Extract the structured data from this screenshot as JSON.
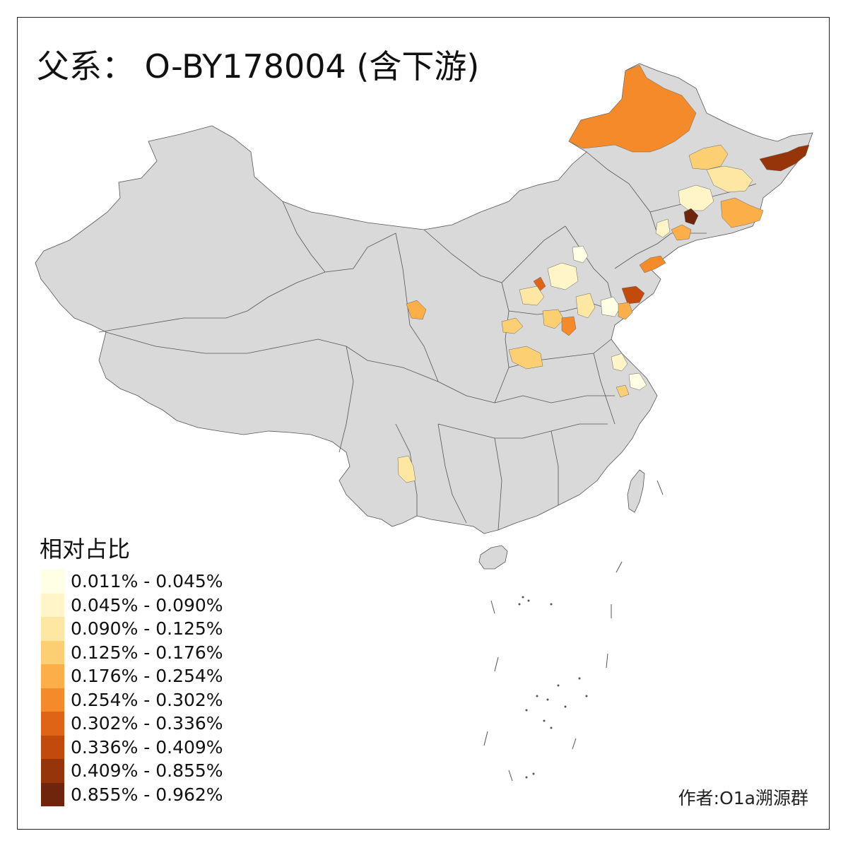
{
  "title": "父系： O-BY178004 (含下游)",
  "legend": {
    "title": "相对占比",
    "items": [
      {
        "label": "0.011% - 0.045%",
        "color": "#FFFFE6"
      },
      {
        "label": "0.045% - 0.090%",
        "color": "#FFF5C8"
      },
      {
        "label": "0.090% - 0.125%",
        "color": "#FEE6A3"
      },
      {
        "label": "0.125% - 0.176%",
        "color": "#FDCF73"
      },
      {
        "label": "0.176% - 0.254%",
        "color": "#FCAF48"
      },
      {
        "label": "0.254% - 0.302%",
        "color": "#F48A2A"
      },
      {
        "label": "0.302% - 0.336%",
        "color": "#E06416"
      },
      {
        "label": "0.336% - 0.409%",
        "color": "#C24A0C"
      },
      {
        "label": "0.409% - 0.855%",
        "color": "#96340A"
      },
      {
        "label": "0.855% - 0.962%",
        "color": "#6E250C"
      }
    ]
  },
  "author": "作者:O1a溯源群",
  "map_colors": {
    "base_fill": "#D9D9D9",
    "border": "#555555"
  }
}
